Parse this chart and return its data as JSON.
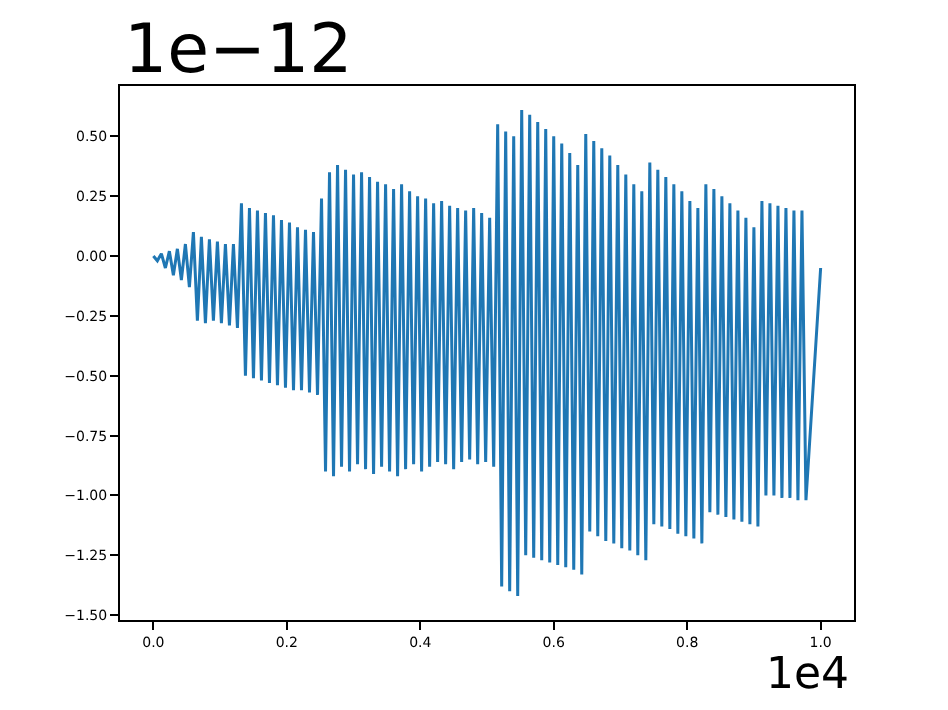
{
  "chart_data": {
    "type": "line",
    "x": [
      0,
      0.006,
      0.012,
      0.018,
      0.024,
      0.03,
      0.036,
      0.042,
      0.048,
      0.054,
      0.06,
      0.066,
      0.072,
      0.078,
      0.084,
      0.09,
      0.096,
      0.102,
      0.108,
      0.114,
      0.12,
      0.126,
      0.132,
      0.138,
      0.144,
      0.15,
      0.156,
      0.162,
      0.168,
      0.174,
      0.18,
      0.186,
      0.192,
      0.198,
      0.204,
      0.21,
      0.216,
      0.222,
      0.228,
      0.234,
      0.24,
      0.246,
      0.252,
      0.258,
      0.264,
      0.27,
      0.276,
      0.282,
      0.288,
      0.294,
      0.3,
      0.306,
      0.312,
      0.318,
      0.324,
      0.33,
      0.336,
      0.342,
      0.348,
      0.354,
      0.36,
      0.366,
      0.372,
      0.378,
      0.384,
      0.39,
      0.396,
      0.402,
      0.408,
      0.414,
      0.42,
      0.426,
      0.432,
      0.438,
      0.444,
      0.45,
      0.456,
      0.462,
      0.468,
      0.474,
      0.48,
      0.486,
      0.492,
      0.498,
      0.504,
      0.51,
      0.516,
      0.522,
      0.528,
      0.534,
      0.54,
      0.546,
      0.552,
      0.558,
      0.564,
      0.57,
      0.576,
      0.582,
      0.588,
      0.594,
      0.6,
      0.606,
      0.612,
      0.618,
      0.624,
      0.63,
      0.636,
      0.642,
      0.648,
      0.654,
      0.66,
      0.666,
      0.672,
      0.678,
      0.684,
      0.69,
      0.696,
      0.702,
      0.708,
      0.714,
      0.72,
      0.726,
      0.732,
      0.738,
      0.744,
      0.75,
      0.756,
      0.762,
      0.768,
      0.774,
      0.78,
      0.786,
      0.792,
      0.798,
      0.804,
      0.81,
      0.816,
      0.822,
      0.828,
      0.834,
      0.84,
      0.846,
      0.852,
      0.858,
      0.864,
      0.87,
      0.876,
      0.882,
      0.888,
      0.894,
      0.9,
      0.906,
      0.912,
      0.918,
      0.924,
      0.93,
      0.936,
      0.942,
      0.948,
      0.954,
      0.96,
      0.966,
      0.972,
      0.978,
      1.0
    ],
    "series": [
      {
        "color": "#1f77b4",
        "values": [
          0,
          -0.02,
          0.01,
          -0.05,
          0.02,
          -0.08,
          0.03,
          -0.1,
          0.05,
          -0.13,
          0.1,
          -0.27,
          0.08,
          -0.28,
          0.07,
          -0.27,
          0.06,
          -0.28,
          0.05,
          -0.29,
          0.05,
          -0.3,
          0.22,
          -0.5,
          0.2,
          -0.51,
          0.19,
          -0.52,
          0.18,
          -0.53,
          0.17,
          -0.54,
          0.15,
          -0.55,
          0.14,
          -0.56,
          0.12,
          -0.56,
          0.11,
          -0.57,
          0.1,
          -0.58,
          0.24,
          -0.9,
          0.35,
          -0.92,
          0.38,
          -0.88,
          0.36,
          -0.9,
          0.34,
          -0.87,
          0.35,
          -0.89,
          0.33,
          -0.91,
          0.31,
          -0.88,
          0.3,
          -0.9,
          0.28,
          -0.92,
          0.3,
          -0.89,
          0.27,
          -0.87,
          0.25,
          -0.9,
          0.24,
          -0.88,
          0.22,
          -0.86,
          0.23,
          -0.87,
          0.21,
          -0.89,
          0.2,
          -0.86,
          0.19,
          -0.85,
          0.2,
          -0.87,
          0.18,
          -0.86,
          0.16,
          -0.88,
          0.55,
          -1.38,
          0.52,
          -1.4,
          0.5,
          -1.42,
          0.61,
          -1.25,
          0.59,
          -1.26,
          0.56,
          -1.27,
          0.53,
          -1.28,
          0.5,
          -1.29,
          0.47,
          -1.3,
          0.43,
          -1.31,
          0.38,
          -1.33,
          0.51,
          -1.15,
          0.48,
          -1.17,
          0.45,
          -1.19,
          0.42,
          -1.2,
          0.38,
          -1.22,
          0.34,
          -1.23,
          0.3,
          -1.25,
          0.27,
          -1.27,
          0.39,
          -1.12,
          0.36,
          -1.13,
          0.33,
          -1.14,
          0.3,
          -1.16,
          0.27,
          -1.17,
          0.23,
          -1.18,
          0.2,
          -1.2,
          0.3,
          -1.07,
          0.28,
          -1.08,
          0.25,
          -1.09,
          0.22,
          -1.1,
          0.19,
          -1.11,
          0.16,
          -1.12,
          0.12,
          -1.13,
          0.23,
          -1.0,
          0.22,
          -1.0,
          0.21,
          -1.01,
          0.2,
          -1.01,
          0.19,
          -1.02,
          0.19,
          -1.02,
          -0.05
        ]
      }
    ],
    "xlim": [
      -0.05,
      1.05
    ],
    "ylim": [
      -1.52,
      0.71
    ],
    "xticks": [
      {
        "value": 0,
        "label": "0.0"
      },
      {
        "value": 0.2,
        "label": "0.2"
      },
      {
        "value": 0.4,
        "label": "0.4"
      },
      {
        "value": 0.6,
        "label": "0.6"
      },
      {
        "value": 0.8,
        "label": "0.8"
      },
      {
        "value": 1,
        "label": "1.0"
      }
    ],
    "yticks": [
      {
        "value": -1.5,
        "label": "−1.50"
      },
      {
        "value": -1.25,
        "label": "−1.25"
      },
      {
        "value": -1,
        "label": "−1.00"
      },
      {
        "value": -0.75,
        "label": "−0.75"
      },
      {
        "value": -0.5,
        "label": "−0.50"
      },
      {
        "value": -0.25,
        "label": "−0.25"
      },
      {
        "value": 0,
        "label": "0.00"
      },
      {
        "value": 0.25,
        "label": "0.25"
      },
      {
        "value": 0.5,
        "label": "0.50"
      }
    ],
    "marker": "none",
    "line_style": "solid",
    "annotations": [
      "1e−12",
      "1e4"
    ]
  }
}
